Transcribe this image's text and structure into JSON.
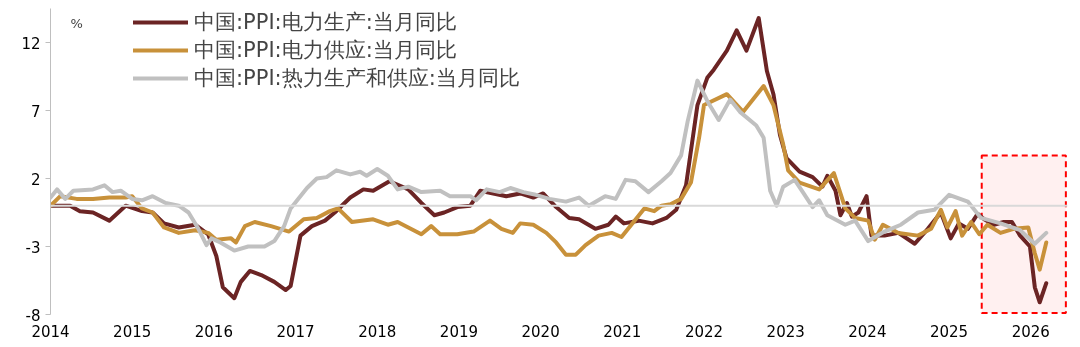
{
  "chart_data": {
    "type": "line",
    "ylabel": "%",
    "xlim": [
      2014,
      2026.45
    ],
    "xticks": [
      2014,
      2015,
      2016,
      2017,
      2018,
      2019,
      2020,
      2021,
      2022,
      2023,
      2024,
      2025,
      2026
    ],
    "ylim": [
      -8,
      14.5
    ],
    "yticks": [
      -8,
      -3,
      2,
      7,
      12
    ],
    "grid": false,
    "legend": "top left",
    "line_style": "solid",
    "marker": "none",
    "ref_lines": [
      {
        "axis": "y",
        "value": 0,
        "label": null,
        "color": "#d9d9d9"
      }
    ],
    "bands": [
      {
        "axis": "x",
        "from": 2025.4,
        "to": 2026.43,
        "label": null,
        "color": "#ff0000"
      }
    ],
    "series": [
      {
        "name": "中国:PPI:电力生产:当月同比",
        "color": "#6b2424",
        "x": [
          2014.0,
          2014.24,
          2014.36,
          2014.52,
          2014.72,
          2014.92,
          2015.12,
          2015.25,
          2015.39,
          2015.57,
          2015.77,
          2015.93,
          2016.03,
          2016.11,
          2016.25,
          2016.33,
          2016.44,
          2016.58,
          2016.74,
          2016.88,
          2016.94,
          2017.06,
          2017.2,
          2017.36,
          2017.48,
          2017.67,
          2017.83,
          2017.95,
          2018.15,
          2018.38,
          2018.54,
          2018.7,
          2018.82,
          2018.98,
          2019.14,
          2019.26,
          2019.42,
          2019.58,
          2019.75,
          2019.91,
          2020.03,
          2020.19,
          2020.35,
          2020.47,
          2020.67,
          2020.83,
          2020.92,
          2021.02,
          2021.2,
          2021.37,
          2021.54,
          2021.66,
          2021.78,
          2021.92,
          2022.04,
          2022.12,
          2022.28,
          2022.4,
          2022.52,
          2022.67,
          2022.77,
          2022.85,
          2022.93,
          2023.01,
          2023.17,
          2023.33,
          2023.45,
          2023.51,
          2023.61,
          2023.67,
          2023.75,
          2023.81,
          2023.89,
          2023.99,
          2024.05,
          2024.21,
          2024.38,
          2024.58,
          2024.74,
          2024.9,
          2025.02,
          2025.12,
          2025.23,
          2025.35,
          2025.43,
          2025.55,
          2025.67,
          2025.77,
          2025.87,
          2025.99,
          2026.05,
          2026.11,
          2026.19
        ],
        "values": [
          0.0,
          0.0,
          -0.4,
          -0.5,
          -1.1,
          0.0,
          -0.4,
          -0.5,
          -1.3,
          -1.6,
          -1.4,
          -2.1,
          -3.7,
          -6.0,
          -6.8,
          -5.6,
          -4.8,
          -5.1,
          -5.6,
          -6.2,
          -5.9,
          -2.2,
          -1.5,
          -1.1,
          -0.5,
          0.6,
          1.2,
          1.1,
          1.8,
          1.2,
          0.2,
          -0.7,
          -0.5,
          -0.1,
          0.0,
          1.1,
          0.9,
          0.7,
          0.9,
          0.6,
          0.9,
          -0.1,
          -0.9,
          -1.0,
          -1.7,
          -1.4,
          -0.8,
          -1.3,
          -1.1,
          -1.3,
          -0.9,
          -0.3,
          1.5,
          7.4,
          9.4,
          10.0,
          11.4,
          12.9,
          11.4,
          13.8,
          9.9,
          8.2,
          5.2,
          3.5,
          2.5,
          2.1,
          1.4,
          2.2,
          1.1,
          -0.7,
          0.2,
          -0.8,
          -0.5,
          0.7,
          -2.2,
          -2.2,
          -2.0,
          -2.8,
          -1.7,
          -0.5,
          -2.4,
          -1.3,
          -1.7,
          -0.6,
          -1.0,
          -1.4,
          -1.2,
          -1.2,
          -2.2,
          -3.0,
          -6.0,
          -7.1,
          -5.7
        ]
      },
      {
        "name": "中国:PPI:电力供应:当月同比",
        "color": "#c8913a",
        "x": [
          2014.0,
          2014.12,
          2014.32,
          2014.52,
          2014.72,
          2014.92,
          2015.0,
          2015.12,
          2015.25,
          2015.39,
          2015.57,
          2015.77,
          2015.93,
          2016.03,
          2016.21,
          2016.27,
          2016.38,
          2016.5,
          2016.7,
          2016.92,
          2017.1,
          2017.26,
          2017.42,
          2017.52,
          2017.69,
          2017.95,
          2018.13,
          2018.25,
          2018.38,
          2018.54,
          2018.66,
          2018.77,
          2018.98,
          2019.18,
          2019.38,
          2019.52,
          2019.66,
          2019.75,
          2019.91,
          2020.07,
          2020.19,
          2020.31,
          2020.43,
          2020.55,
          2020.71,
          2020.87,
          2020.99,
          2021.15,
          2021.27,
          2021.39,
          2021.48,
          2021.59,
          2021.72,
          2021.84,
          2021.94,
          2022.0,
          2022.28,
          2022.48,
          2022.73,
          2022.85,
          2022.97,
          2023.03,
          2023.17,
          2023.41,
          2023.59,
          2023.73,
          2023.85,
          2024.01,
          2024.09,
          2024.19,
          2024.38,
          2024.62,
          2024.78,
          2024.9,
          2024.98,
          2025.08,
          2025.16,
          2025.27,
          2025.37,
          2025.47,
          2025.63,
          2025.79,
          2025.97,
          2026.05,
          2026.11,
          2026.19
        ],
        "values": [
          0.0,
          0.7,
          0.5,
          0.5,
          0.6,
          0.6,
          0.7,
          -0.2,
          -0.5,
          -1.6,
          -2.0,
          -1.8,
          -2.0,
          -2.5,
          -2.4,
          -2.7,
          -1.5,
          -1.2,
          -1.5,
          -1.9,
          -1.0,
          -0.9,
          -0.4,
          -0.2,
          -1.2,
          -1.0,
          -1.4,
          -1.2,
          -1.6,
          -2.1,
          -1.5,
          -2.1,
          -2.1,
          -1.9,
          -1.1,
          -1.7,
          -2.0,
          -1.3,
          -1.4,
          -2.0,
          -2.7,
          -3.6,
          -3.6,
          -2.9,
          -2.2,
          -2.0,
          -2.3,
          -1.1,
          -0.2,
          -0.4,
          0.0,
          0.1,
          0.5,
          1.7,
          5.0,
          7.4,
          8.2,
          6.9,
          8.8,
          7.4,
          4.5,
          2.6,
          1.7,
          1.2,
          2.4,
          -0.2,
          -0.9,
          -1.1,
          -2.5,
          -1.4,
          -2.0,
          -2.2,
          -1.7,
          -0.3,
          -1.6,
          -0.4,
          -2.2,
          -1.2,
          -2.1,
          -1.4,
          -2.0,
          -1.7,
          -1.6,
          -3.5,
          -4.7,
          -2.7
        ]
      },
      {
        "name": "中国:PPI:热力生产和供应:当月同比",
        "color": "#c0c0c0",
        "x": [
          2014.0,
          2014.08,
          2014.18,
          2014.28,
          2014.52,
          2014.66,
          2014.76,
          2014.86,
          2015.0,
          2015.12,
          2015.25,
          2015.41,
          2015.57,
          2015.69,
          2015.81,
          2015.91,
          2015.97,
          2016.08,
          2016.25,
          2016.42,
          2016.62,
          2016.74,
          2016.86,
          2016.94,
          2017.02,
          2017.14,
          2017.26,
          2017.38,
          2017.5,
          2017.67,
          2017.79,
          2017.87,
          2018.0,
          2018.13,
          2018.25,
          2018.38,
          2018.54,
          2018.77,
          2018.89,
          2019.14,
          2019.21,
          2019.34,
          2019.5,
          2019.63,
          2019.79,
          2019.94,
          2020.11,
          2020.31,
          2020.47,
          2020.59,
          2020.79,
          2020.92,
          2021.04,
          2021.16,
          2021.32,
          2021.48,
          2021.59,
          2021.72,
          2021.8,
          2021.92,
          2022.04,
          2022.18,
          2022.32,
          2022.44,
          2022.64,
          2022.73,
          2022.81,
          2022.89,
          2022.97,
          2023.11,
          2023.21,
          2023.33,
          2023.41,
          2023.51,
          2023.73,
          2023.85,
          2024.01,
          2024.21,
          2024.41,
          2024.62,
          2024.82,
          2025.0,
          2025.23,
          2025.39,
          2025.63,
          2025.87,
          2026.05,
          2026.19
        ],
        "values": [
          0.6,
          1.2,
          0.5,
          1.1,
          1.2,
          1.5,
          1.0,
          1.1,
          0.5,
          0.4,
          0.7,
          0.2,
          0.0,
          -0.5,
          -1.7,
          -2.9,
          -2.4,
          -2.7,
          -3.3,
          -3.0,
          -3.0,
          -2.6,
          -1.5,
          -0.2,
          0.4,
          1.3,
          2.0,
          2.1,
          2.6,
          2.3,
          2.5,
          2.2,
          2.7,
          2.2,
          1.2,
          1.4,
          1.0,
          1.1,
          0.7,
          0.7,
          0.4,
          1.2,
          1.0,
          1.3,
          1.0,
          0.8,
          0.5,
          0.3,
          0.6,
          0.0,
          0.7,
          0.5,
          1.9,
          1.8,
          1.0,
          1.8,
          2.4,
          3.7,
          6.2,
          9.2,
          7.7,
          6.3,
          7.8,
          6.9,
          5.9,
          5.0,
          1.1,
          0.0,
          1.4,
          1.9,
          1.0,
          -0.1,
          0.4,
          -0.7,
          -1.4,
          -1.1,
          -2.6,
          -1.9,
          -1.4,
          -0.5,
          -0.3,
          0.8,
          0.3,
          -0.9,
          -1.3,
          -1.8,
          -2.8,
          -2.0
        ]
      }
    ]
  }
}
